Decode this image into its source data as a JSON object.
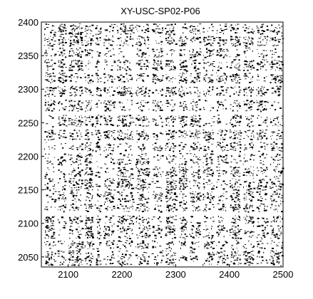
{
  "chart_data": {
    "type": "scatter",
    "title": "XY-USC-SP02-P06",
    "xlabel": "",
    "ylabel": "",
    "xlim": [
      2050,
      2500
    ],
    "ylim": [
      2035,
      2400
    ],
    "x_ticks": [
      2100,
      2200,
      2300,
      2400,
      2500
    ],
    "y_ticks": [
      2050,
      2100,
      2150,
      2200,
      2250,
      2300,
      2350,
      2400
    ],
    "grid": false,
    "legend": "none",
    "marker_color": "#000000",
    "background_color": "#ffffff",
    "frame_color": "#000000",
    "series": [
      {
        "description_of_points": "dense recurrence-style binary point matrix; approximately black pixels at (x,y) data coordinates",
        "bands_x": [
          [
            2055,
            2075
          ],
          [
            2080,
            2095
          ],
          [
            2100,
            2125
          ],
          [
            2130,
            2145
          ],
          [
            2150,
            2160
          ],
          [
            2165,
            2185
          ],
          [
            2190,
            2220
          ],
          [
            2225,
            2250
          ],
          [
            2255,
            2275
          ],
          [
            2280,
            2300
          ],
          [
            2305,
            2320
          ],
          [
            2325,
            2345
          ],
          [
            2350,
            2370
          ],
          [
            2375,
            2395
          ],
          [
            2400,
            2420
          ],
          [
            2425,
            2445
          ],
          [
            2450,
            2470
          ],
          [
            2475,
            2498
          ]
        ],
        "bands_y": [
          [
            2038,
            2060
          ],
          [
            2062,
            2075
          ],
          [
            2078,
            2098
          ],
          [
            2100,
            2112
          ],
          [
            2118,
            2130
          ],
          [
            2132,
            2148
          ],
          [
            2150,
            2168
          ],
          [
            2170,
            2185
          ],
          [
            2188,
            2205
          ],
          [
            2208,
            2222
          ],
          [
            2225,
            2240
          ],
          [
            2245,
            2262
          ],
          [
            2268,
            2285
          ],
          [
            2290,
            2305
          ],
          [
            2310,
            2325
          ],
          [
            2328,
            2345
          ],
          [
            2348,
            2362
          ],
          [
            2365,
            2380
          ],
          [
            2382,
            2398
          ]
        ]
      }
    ]
  }
}
